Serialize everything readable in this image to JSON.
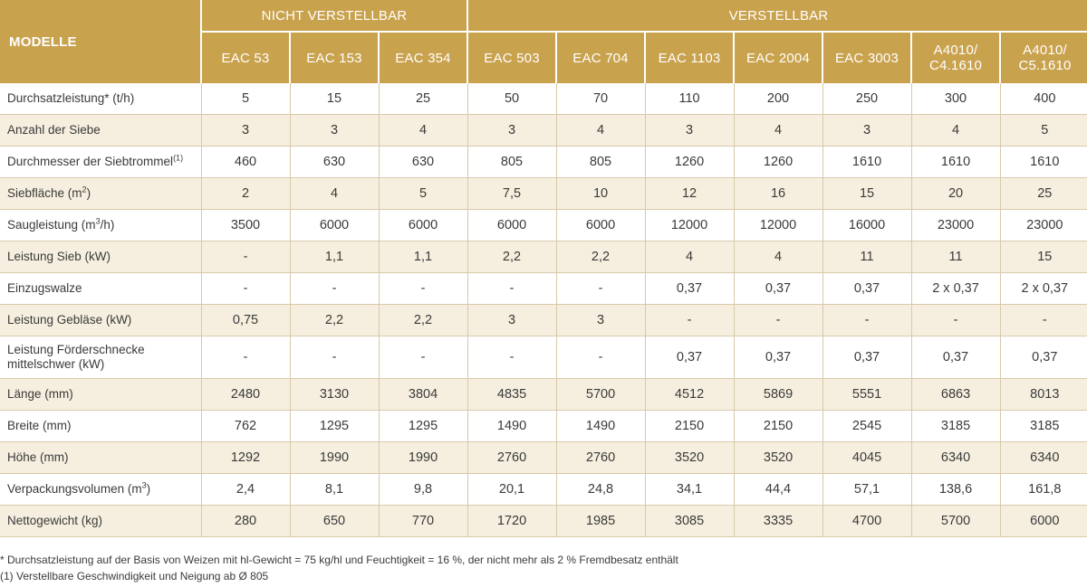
{
  "header": {
    "modelle_label": "MODELLE",
    "group_fixed": "NICHT VERSTELLBAR",
    "group_adjustable": "VERSTELLBAR",
    "models": [
      "EAC 53",
      "EAC 153",
      "EAC 354",
      "EAC 503",
      "EAC 704",
      "EAC 1103",
      "EAC 2004",
      "EAC 3003",
      "A4010/\nC4.1610",
      "A4010/\nC5.1610"
    ]
  },
  "rows": [
    {
      "label": "Durchsatzleistung* (t/h)",
      "sup": "",
      "label_suffix": "",
      "values": [
        "5",
        "15",
        "25",
        "50",
        "70",
        "110",
        "200",
        "250",
        "300",
        "400"
      ]
    },
    {
      "label": "Anzahl der Siebe",
      "sup": "",
      "label_suffix": "",
      "values": [
        "3",
        "3",
        "4",
        "3",
        "4",
        "3",
        "4",
        "3",
        "4",
        "5"
      ]
    },
    {
      "label": "Durchmesser der Siebtrommel",
      "sup": "(1)",
      "label_suffix": "",
      "values": [
        "460",
        "630",
        "630",
        "805",
        "805",
        "1260",
        "1260",
        "1610",
        "1610",
        "1610"
      ]
    },
    {
      "label": "Siebfläche (m",
      "sup": "2",
      "label_suffix": ")",
      "values": [
        "2",
        "4",
        "5",
        "7,5",
        "10",
        "12",
        "16",
        "15",
        "20",
        "25"
      ]
    },
    {
      "label": "Saugleistung (m",
      "sup": "3",
      "label_suffix": "/h)",
      "values": [
        "3500",
        "6000",
        "6000",
        "6000",
        "6000",
        "12000",
        "12000",
        "16000",
        "23000",
        "23000"
      ]
    },
    {
      "label": "Leistung Sieb (kW)",
      "sup": "",
      "label_suffix": "",
      "values": [
        "-",
        "1,1",
        "1,1",
        "2,2",
        "2,2",
        "4",
        "4",
        "11",
        "11",
        "15"
      ]
    },
    {
      "label": "Einzugswalze",
      "sup": "",
      "label_suffix": "",
      "values": [
        "-",
        "-",
        "-",
        "-",
        "-",
        "0,37",
        "0,37",
        "0,37",
        "2 x 0,37",
        "2 x 0,37"
      ]
    },
    {
      "label": "Leistung Gebläse (kW)",
      "sup": "",
      "label_suffix": "",
      "values": [
        "0,75",
        "2,2",
        "2,2",
        "3",
        "3",
        "-",
        "-",
        "-",
        "-",
        "-"
      ]
    },
    {
      "label": "Leistung Förderschnecke mittelschwer (kW)",
      "sup": "",
      "label_suffix": "",
      "values": [
        "-",
        "-",
        "-",
        "-",
        "-",
        "0,37",
        "0,37",
        "0,37",
        "0,37",
        "0,37"
      ]
    },
    {
      "label": "Länge (mm)",
      "sup": "",
      "label_suffix": "",
      "values": [
        "2480",
        "3130",
        "3804",
        "4835",
        "5700",
        "4512",
        "5869",
        "5551",
        "6863",
        "8013"
      ]
    },
    {
      "label": "Breite (mm)",
      "sup": "",
      "label_suffix": "",
      "values": [
        "762",
        "1295",
        "1295",
        "1490",
        "1490",
        "2150",
        "2150",
        "2545",
        "3185",
        "3185"
      ]
    },
    {
      "label": "Höhe (mm)",
      "sup": "",
      "label_suffix": "",
      "values": [
        "1292",
        "1990",
        "1990",
        "2760",
        "2760",
        "3520",
        "3520",
        "4045",
        "6340",
        "6340"
      ]
    },
    {
      "label": "Verpackungsvolumen (m",
      "sup": "3",
      "label_suffix": ")",
      "values": [
        "2,4",
        "8,1",
        "9,8",
        "20,1",
        "24,8",
        "34,1",
        "44,4",
        "57,1",
        "138,6",
        "161,8"
      ]
    },
    {
      "label": "Nettogewicht (kg)",
      "sup": "",
      "label_suffix": "",
      "values": [
        "280",
        "650",
        "770",
        "1720",
        "1985",
        "3085",
        "3335",
        "4700",
        "5700",
        "6000"
      ]
    }
  ],
  "footnotes": {
    "note1": "* Durchsatzleistung auf der Basis von Weizen mit hl-Gewicht = 75 kg/hl und Feuchtigkeit = 16 %, der nicht mehr als 2 % Fremdbesatz enthält",
    "note2": "(1) Verstellbare Geschwindigkeit und Neigung ab Ø 805"
  },
  "colors": {
    "header_gold": "#c9a24e",
    "row_alt": "#f6efdf"
  }
}
